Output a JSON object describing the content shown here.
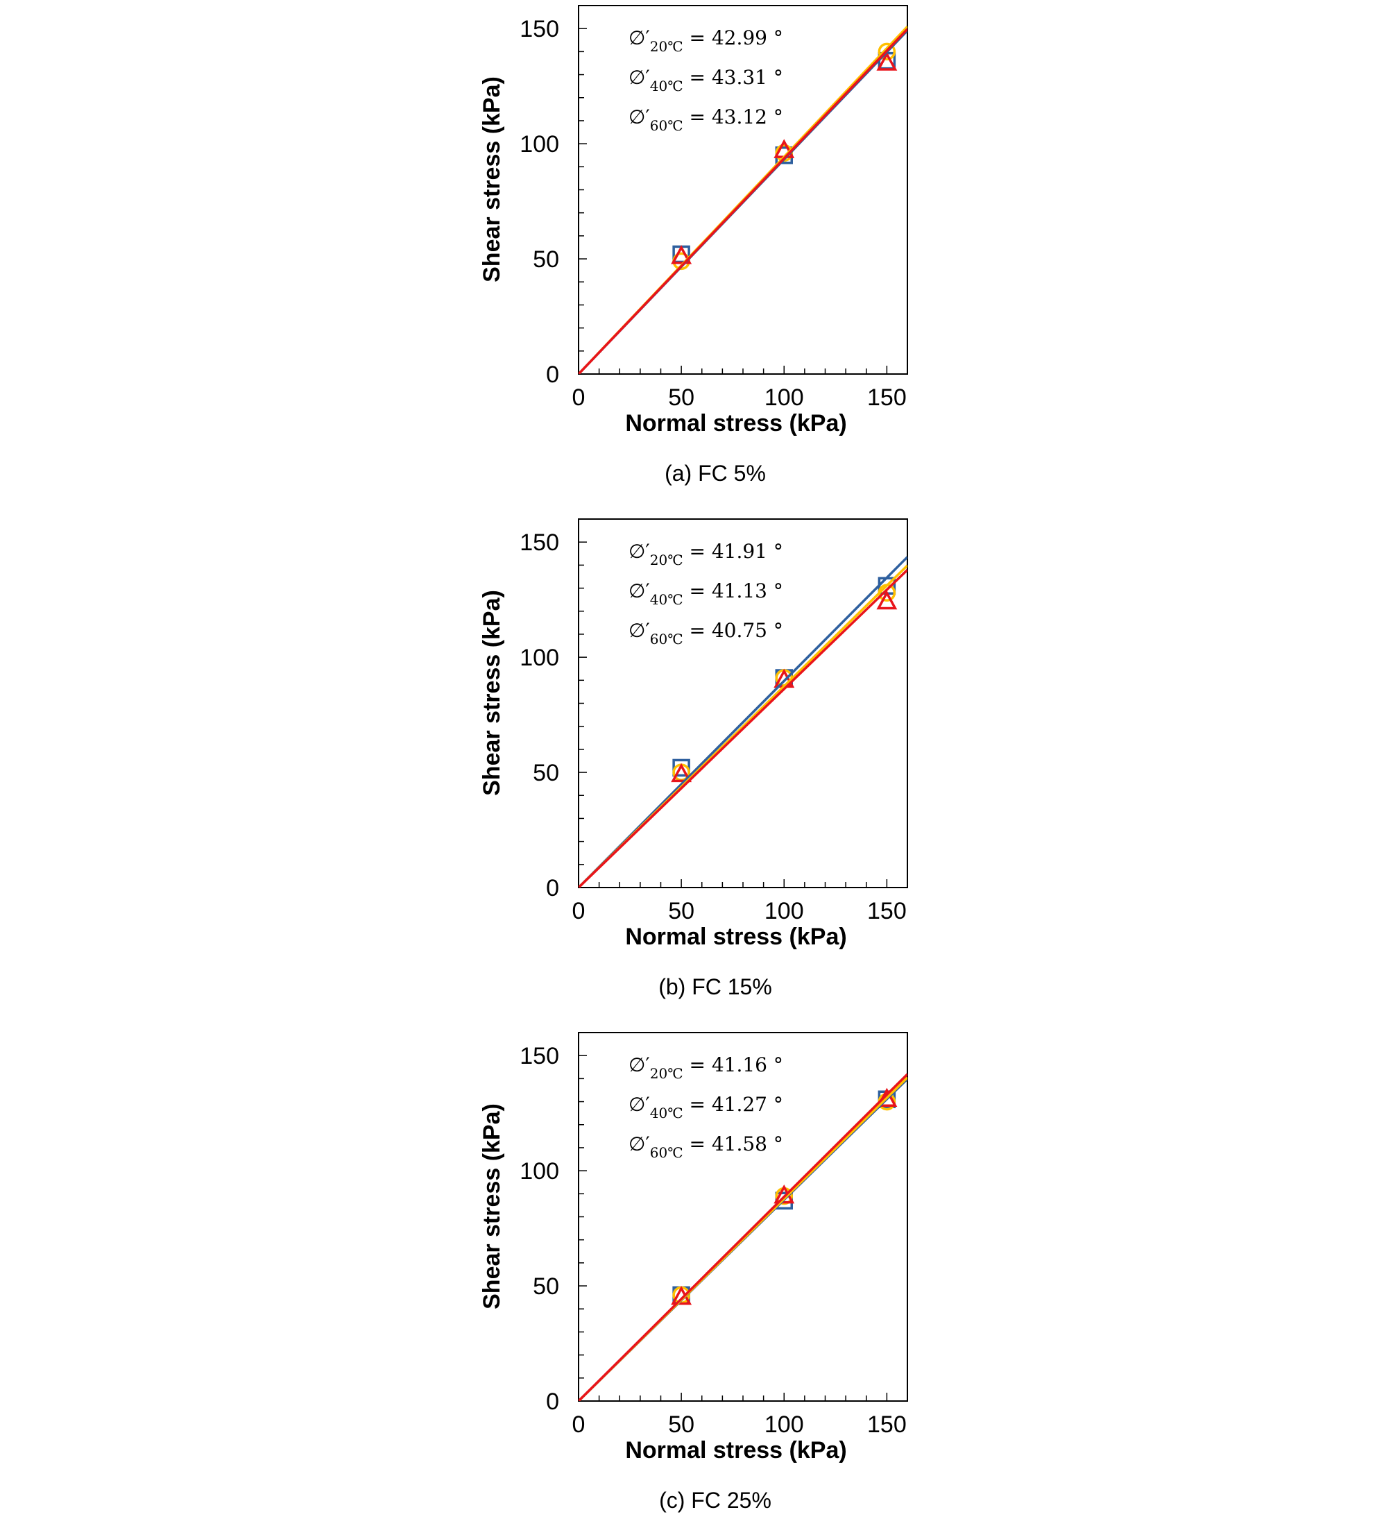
{
  "figure": {
    "colors": {
      "series_20C": "#2e5f9e",
      "series_40C": "#ffc000",
      "series_60C": "#e8141b"
    },
    "markers": {
      "series_20C": "square",
      "series_40C": "circle",
      "series_60C": "triangle"
    }
  },
  "chart_data": [
    {
      "type": "scatter",
      "caption": "(a) FC 5%",
      "xlabel": "Normal stress (kPa)",
      "ylabel": "Shear stress (kPa)",
      "xlim": [
        0,
        160
      ],
      "ylim": [
        0,
        160
      ],
      "xticks": [
        "0",
        "50",
        "100",
        "150"
      ],
      "yticks": [
        "0",
        "50",
        "100",
        "150"
      ],
      "grid": false,
      "annotations": [
        {
          "symbol": "∅′",
          "sub": "20℃",
          "text": "= 42.99 °"
        },
        {
          "symbol": "∅′",
          "sub": "40℃",
          "text": "= 43.31 °"
        },
        {
          "symbol": "∅′",
          "sub": "60℃",
          "text": "= 43.12 °"
        }
      ],
      "series": [
        {
          "key": "series_20C",
          "x": [
            50,
            100,
            150
          ],
          "y": [
            52,
            95,
            136
          ],
          "fit_slope": 0.932
        },
        {
          "key": "series_40C",
          "x": [
            50,
            100,
            150
          ],
          "y": [
            49,
            96,
            140
          ],
          "fit_slope": 0.943
        },
        {
          "key": "series_60C",
          "x": [
            50,
            100,
            150
          ],
          "y": [
            51,
            97,
            135
          ],
          "fit_slope": 0.936
        }
      ]
    },
    {
      "type": "scatter",
      "caption": "(b) FC 15%",
      "xlabel": "Normal stress (kPa)",
      "ylabel": "Shear stress (kPa)",
      "xlim": [
        0,
        160
      ],
      "ylim": [
        0,
        160
      ],
      "xticks": [
        "0",
        "50",
        "100",
        "150"
      ],
      "yticks": [
        "0",
        "50",
        "100",
        "150"
      ],
      "grid": false,
      "annotations": [
        {
          "symbol": "∅′",
          "sub": "20℃",
          "text": "= 41.91 °"
        },
        {
          "symbol": "∅′",
          "sub": "40℃",
          "text": "= 41.13 °"
        },
        {
          "symbol": "∅′",
          "sub": "60℃",
          "text": "= 40.75 °"
        }
      ],
      "series": [
        {
          "key": "series_20C",
          "x": [
            50,
            100,
            150
          ],
          "y": [
            52,
            91,
            131
          ],
          "fit_slope": 0.897
        },
        {
          "key": "series_40C",
          "x": [
            50,
            100,
            150
          ],
          "y": [
            50,
            91,
            128
          ],
          "fit_slope": 0.874
        },
        {
          "key": "series_60C",
          "x": [
            50,
            100,
            150
          ],
          "y": [
            49,
            90,
            124
          ],
          "fit_slope": 0.862
        }
      ]
    },
    {
      "type": "scatter",
      "caption": "(c) FC 25%",
      "xlabel": "Normal stress (kPa)",
      "ylabel": "Shear stress (kPa)",
      "xlim": [
        0,
        160
      ],
      "ylim": [
        0,
        160
      ],
      "xticks": [
        "0",
        "50",
        "100",
        "150"
      ],
      "yticks": [
        "0",
        "50",
        "100",
        "150"
      ],
      "grid": false,
      "annotations": [
        {
          "symbol": "∅′",
          "sub": "20℃",
          "text": "= 41.16 °"
        },
        {
          "symbol": "∅′",
          "sub": "40℃",
          "text": "= 41.27 °"
        },
        {
          "symbol": "∅′",
          "sub": "60℃",
          "text": "= 41.58 °"
        }
      ],
      "series": [
        {
          "key": "series_20C",
          "x": [
            50,
            100,
            150
          ],
          "y": [
            46,
            87,
            131
          ],
          "fit_slope": 0.874
        },
        {
          "key": "series_40C",
          "x": [
            50,
            100,
            150
          ],
          "y": [
            46,
            89,
            130
          ],
          "fit_slope": 0.878
        },
        {
          "key": "series_60C",
          "x": [
            50,
            100,
            150
          ],
          "y": [
            45,
            89,
            131
          ],
          "fit_slope": 0.887
        }
      ]
    }
  ]
}
